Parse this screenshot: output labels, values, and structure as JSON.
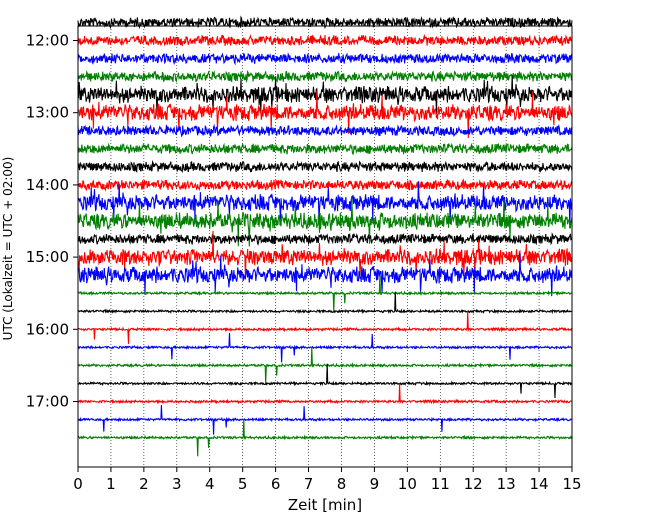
{
  "chart_data": {
    "type": "line",
    "subtype": "helicorder",
    "xlabel": "Zeit  [min]",
    "ylabel": "UTC (Lokalzeit = UTC + 02:00)",
    "xlim": [
      0,
      15
    ],
    "x_ticks": [
      "0",
      "1",
      "2",
      "3",
      "4",
      "5",
      "6",
      "7",
      "8",
      "9",
      "10",
      "11",
      "12",
      "13",
      "14",
      "15"
    ],
    "y_ticks": [
      "12:00",
      "13:00",
      "14:00",
      "15:00",
      "16:00",
      "17:00"
    ],
    "vertical_grid": "dotted at each minute",
    "colors": [
      "#000000",
      "#ff0000",
      "#0000ff",
      "#008000"
    ],
    "rows": [
      {
        "start": "11:45",
        "color": "#000000",
        "amplitude": "medium"
      },
      {
        "start": "12:00",
        "color": "#ff0000",
        "amplitude": "medium"
      },
      {
        "start": "12:15",
        "color": "#0000ff",
        "amplitude": "medium"
      },
      {
        "start": "12:30",
        "color": "#008000",
        "amplitude": "medium"
      },
      {
        "start": "12:45",
        "color": "#000000",
        "amplitude": "high"
      },
      {
        "start": "13:00",
        "color": "#ff0000",
        "amplitude": "high"
      },
      {
        "start": "13:15",
        "color": "#0000ff",
        "amplitude": "medium"
      },
      {
        "start": "13:30",
        "color": "#008000",
        "amplitude": "medium"
      },
      {
        "start": "13:45",
        "color": "#000000",
        "amplitude": "medium"
      },
      {
        "start": "14:00",
        "color": "#ff0000",
        "amplitude": "medium"
      },
      {
        "start": "14:15",
        "color": "#0000ff",
        "amplitude": "high"
      },
      {
        "start": "14:30",
        "color": "#008000",
        "amplitude": "high"
      },
      {
        "start": "14:45",
        "color": "#000000",
        "amplitude": "medium"
      },
      {
        "start": "15:00",
        "color": "#ff0000",
        "amplitude": "high"
      },
      {
        "start": "15:15",
        "color": "#0000ff",
        "amplitude": "high"
      },
      {
        "start": "15:30",
        "color": "#008000",
        "amplitude": "low"
      },
      {
        "start": "15:45",
        "color": "#000000",
        "amplitude": "low"
      },
      {
        "start": "16:00",
        "color": "#ff0000",
        "amplitude": "low"
      },
      {
        "start": "16:15",
        "color": "#0000ff",
        "amplitude": "low"
      },
      {
        "start": "16:30",
        "color": "#008000",
        "amplitude": "low"
      },
      {
        "start": "16:45",
        "color": "#000000",
        "amplitude": "low"
      },
      {
        "start": "17:00",
        "color": "#ff0000",
        "amplitude": "low"
      },
      {
        "start": "17:15",
        "color": "#0000ff",
        "amplitude": "low"
      },
      {
        "start": "17:30",
        "color": "#008000",
        "amplitude": "low"
      }
    ]
  }
}
